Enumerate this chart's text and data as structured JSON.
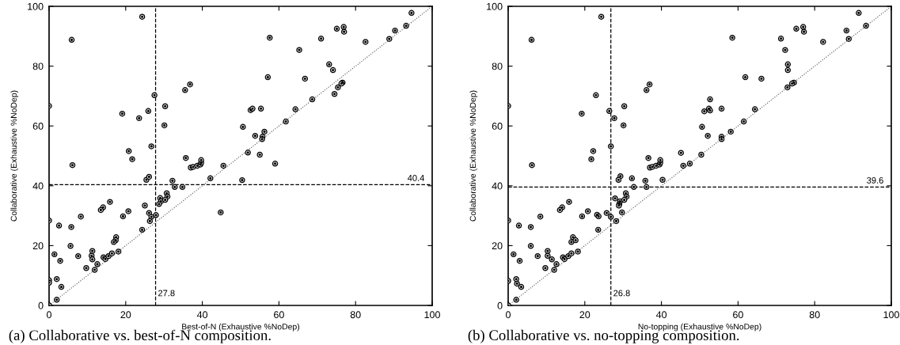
{
  "chart_data": [
    {
      "type": "scatter",
      "xlabel": "Best-of-N (Exhaustive %NoDep)",
      "ylabel": "Collaborative (Exhaustive %NoDep)",
      "xlim": [
        0,
        100
      ],
      "ylim": [
        0,
        100
      ],
      "xticks": [
        0,
        20,
        40,
        60,
        80,
        100
      ],
      "yticks": [
        0,
        20,
        40,
        60,
        80,
        100
      ],
      "grid": false,
      "annotations": [
        "(a) Collaborative vs. best-of-N composition."
      ],
      "ref_lines": [
        {
          "axis": "x",
          "value": 27.8,
          "label": "27.8",
          "line_style": "dashed",
          "color": "#000000"
        },
        {
          "axis": "y",
          "value": 40.4,
          "label": "40.4",
          "line_style": "dashed",
          "color": "#000000"
        }
      ],
      "series": [
        {
          "color": "#000000",
          "marker": "circle",
          "x": [
            24.3,
            5.9,
            0,
            27.5,
            19.1,
            23.5,
            25.9,
            30.3,
            30.1,
            36.8,
            35.5,
            26.7,
            20.8,
            21.7,
            6.1,
            35.7,
            37.0,
            37.6,
            38.7,
            39.5,
            39.7,
            39.7,
            45.5,
            42.1,
            25.4,
            26.1,
            32.2,
            32.8,
            34.8,
            29.0,
            29.2,
            28.7,
            30.7,
            30.9,
            30.3,
            25.0,
            26.1,
            26.7,
            27.9,
            26.3,
            24.3,
            44.8,
            14.1,
            13.5,
            15.9,
            20.7,
            19.3,
            8.3,
            0,
            2.6,
            5.8,
            17.5,
            17.4,
            16.9,
            5.6,
            11.3,
            11.1,
            11.3,
            1.4,
            7.6,
            2.9,
            14.2,
            14.7,
            15.5,
            16.4,
            18.1,
            9.7,
            12.6,
            11.9,
            2.0,
            3.2,
            0,
            0,
            2.0,
            0,
            94.6,
            93.2,
            88.8,
            90.3,
            82.6,
            76.9,
            75.1,
            77.0,
            71.0,
            57.6,
            65.3,
            73.1,
            74.1,
            57.1,
            66.8,
            76.6,
            76.3,
            75.4,
            74.5,
            68.7,
            52.6,
            53.1,
            55.3,
            64.3,
            61.8,
            50.6,
            56.2,
            55.7,
            55.6,
            53.8,
            51.9,
            55.0,
            59.0,
            50.4
          ],
          "values": [
            96.5,
            88.8,
            66.7,
            70.3,
            64.1,
            62.6,
            65.0,
            66.6,
            60.2,
            73.9,
            72.0,
            53.2,
            51.6,
            48.9,
            46.9,
            49.3,
            46.1,
            46.3,
            46.7,
            47.1,
            47.7,
            48.6,
            46.7,
            42.5,
            42.0,
            43.0,
            41.7,
            39.6,
            39.6,
            35.9,
            34.8,
            33.9,
            37.5,
            36.4,
            35.3,
            33.4,
            30.9,
            29.6,
            30.2,
            28.2,
            25.3,
            31.1,
            32.8,
            31.9,
            34.6,
            31.5,
            29.8,
            29.7,
            28.4,
            26.7,
            26.2,
            22.8,
            21.8,
            21.2,
            19.9,
            18.2,
            16.6,
            15.4,
            17.1,
            16.5,
            14.9,
            16.1,
            15.5,
            16.5,
            17.4,
            18.0,
            12.5,
            13.8,
            11.9,
            8.8,
            6.2,
            8.4,
            7.6,
            1.9,
            0,
            97.8,
            93.5,
            89.1,
            91.9,
            88.1,
            93.1,
            92.5,
            91.5,
            89.2,
            89.5,
            85.4,
            80.6,
            78.7,
            76.3,
            75.8,
            74.5,
            74.2,
            72.9,
            70.7,
            68.9,
            65.3,
            65.8,
            65.8,
            65.6,
            61.5,
            59.7,
            58.1,
            56.4,
            55.6,
            56.7,
            51.1,
            50.4,
            47.4,
            41.9
          ]
        },
        {
          "type": "line",
          "color": "#555555",
          "line_style": "dotted",
          "marker": "none",
          "x": [
            0,
            100
          ],
          "values": [
            0,
            100
          ]
        }
      ]
    },
    {
      "type": "scatter",
      "xlabel": "No-topping (Exhaustive %NoDep)",
      "ylabel": "Collaborative (Exhaustive %NoDep)",
      "xlim": [
        0,
        100
      ],
      "ylim": [
        0,
        100
      ],
      "xticks": [
        0,
        20,
        40,
        60,
        80,
        100
      ],
      "yticks": [
        0,
        20,
        40,
        60,
        80,
        100
      ],
      "grid": false,
      "annotations": [
        "(b) Collaborative vs. no-topping composition."
      ],
      "ref_lines": [
        {
          "axis": "x",
          "value": 26.8,
          "label": "26.8",
          "line_style": "dashed",
          "color": "#000000"
        },
        {
          "axis": "y",
          "value": 39.6,
          "label": "39.6",
          "line_style": "dashed",
          "color": "#000000"
        }
      ],
      "series": [
        {
          "color": "#000000",
          "marker": "circle",
          "x": [
            24.3,
            6.1,
            0,
            22.9,
            19.2,
            26.4,
            27.7,
            30.3,
            30.1,
            36.9,
            36.1,
            26.8,
            22.2,
            21.7,
            6.2,
            36.6,
            37.0,
            37.6,
            38.6,
            39.5,
            39.7,
            39.7,
            45.1,
            45.7,
            47.4,
            40.3,
            35.8,
            36.1,
            32.3,
            32.8,
            29.3,
            28.8,
            29.2,
            29.0,
            28.9,
            27.9,
            30.7,
            30.9,
            30.3,
            29.7,
            25.7,
            26.8,
            23.2,
            23.6,
            28.2,
            23.5,
            20.8,
            14.1,
            13.5,
            15.9,
            19.3,
            8.4,
            0,
            2.8,
            5.9,
            16.9,
            16.5,
            17.6,
            5.9,
            10.3,
            10.3,
            11.4,
            1.4,
            7.7,
            3.0,
            14.3,
            14.7,
            15.7,
            16.5,
            18.2,
            9.7,
            12.6,
            12.0,
            2.1,
            2.3,
            3.4,
            0,
            2.1,
            0,
            91.5,
            93.4,
            88.9,
            88.3,
            82.2,
            77.0,
            75.2,
            77.2,
            71.2,
            58.5,
            72.3,
            73.0,
            73.0,
            61.9,
            66.1,
            74.6,
            74.1,
            72.9,
            52.7,
            51.2,
            52.4,
            52.7,
            55.7,
            64.4,
            61.5,
            50.6,
            58.1,
            55.7,
            55.7,
            52.1,
            50.4
          ],
          "values": [
            96.5,
            88.8,
            66.7,
            70.3,
            64.1,
            65.0,
            62.6,
            66.6,
            60.2,
            73.9,
            72.0,
            53.2,
            51.6,
            48.9,
            46.9,
            49.3,
            46.1,
            46.3,
            46.7,
            47.1,
            47.7,
            48.6,
            51.0,
            46.7,
            47.4,
            42.0,
            41.7,
            39.6,
            42.5,
            39.6,
            43.2,
            42.0,
            34.8,
            33.9,
            33.4,
            35.8,
            37.5,
            36.4,
            35.3,
            31.1,
            30.9,
            29.6,
            30.3,
            29.8,
            28.2,
            25.3,
            31.5,
            32.8,
            31.9,
            34.6,
            29.8,
            29.7,
            28.4,
            26.7,
            26.2,
            22.8,
            21.2,
            21.8,
            19.9,
            18.2,
            16.6,
            15.4,
            17.1,
            16.5,
            14.9,
            16.1,
            15.5,
            16.5,
            17.4,
            18.0,
            12.5,
            13.8,
            11.9,
            8.8,
            7.3,
            6.2,
            8.2,
            1.9,
            0,
            97.8,
            93.5,
            89.1,
            91.9,
            88.1,
            93.1,
            92.5,
            91.5,
            89.2,
            89.5,
            85.4,
            80.6,
            78.7,
            76.3,
            75.8,
            74.5,
            74.2,
            72.9,
            68.9,
            64.9,
            65.8,
            65.2,
            65.8,
            65.6,
            61.5,
            59.7,
            58.1,
            56.4,
            55.6,
            56.7,
            50.4
          ]
        },
        {
          "type": "line",
          "color": "#555555",
          "line_style": "dotted",
          "marker": "none",
          "x": [
            0,
            100
          ],
          "values": [
            0,
            100
          ]
        }
      ]
    }
  ]
}
